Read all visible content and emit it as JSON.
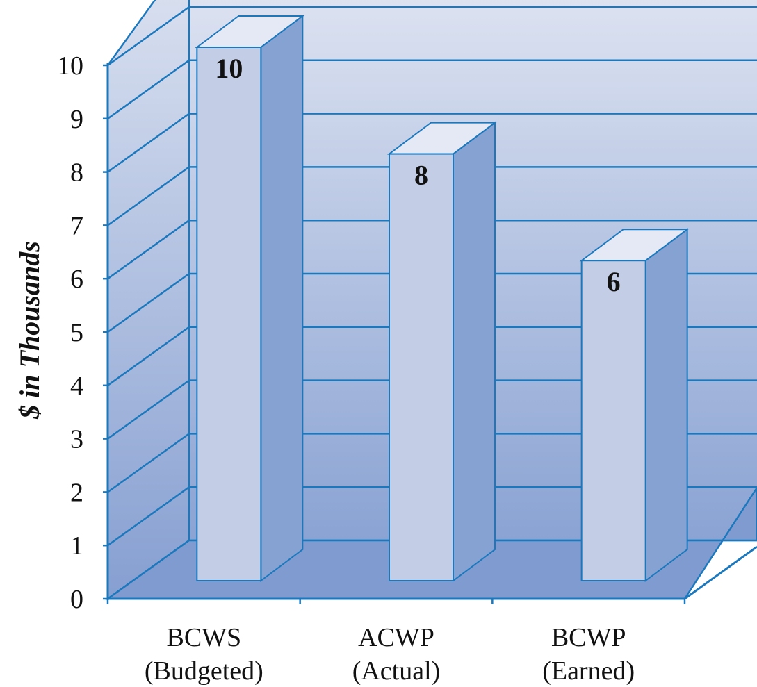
{
  "chart_data": {
    "type": "bar",
    "style": "3d",
    "title": "",
    "xlabel": "",
    "ylabel": "$ in Thousands",
    "ylim": [
      0,
      10
    ],
    "yticks": [
      "0",
      "1",
      "2",
      "3",
      "4",
      "5",
      "6",
      "7",
      "8",
      "9",
      "10"
    ],
    "categories": [
      {
        "line1": "BCWS",
        "line2": "(Budgeted)"
      },
      {
        "line1": "ACWP",
        "line2": "(Actual)"
      },
      {
        "line1": "BCWP",
        "line2": "(Earned)"
      }
    ],
    "values": [
      10,
      8,
      6
    ],
    "data_labels": [
      "10",
      "8",
      "6"
    ],
    "grid": true,
    "colors": {
      "bar_front": "#c3cde6",
      "bar_side": "#85a2d3",
      "bar_top": "#e4e9f5",
      "outline": "#1c78bd",
      "wall_top": "#e3e7f3",
      "wall_bottom": "#8aa3d3",
      "floor": "#7f9bd0"
    }
  }
}
